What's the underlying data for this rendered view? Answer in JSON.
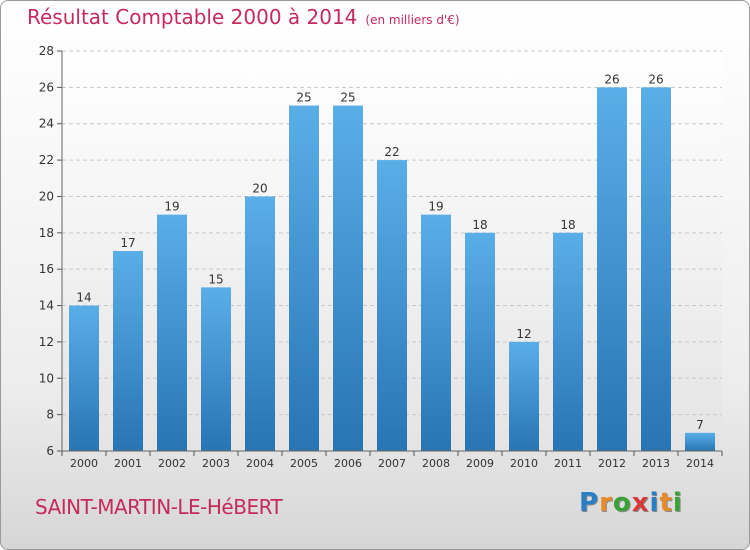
{
  "title": "Résultat Comptable 2000 à 2014",
  "unit_note": "(en milliers d'€)",
  "place": "SAINT-MARTIN-LE-HéBERT",
  "logo": {
    "letters": [
      "P",
      "r",
      "o",
      "x",
      "i",
      "t",
      "i"
    ],
    "colors": [
      "#2a7fc4",
      "#e8892a",
      "#3aa038",
      "#d63a3a",
      "#2a7fc4",
      "#e8892a",
      "#3aa038"
    ]
  },
  "colors": {
    "title": "#c62a5b",
    "bar_top": "#5aaee8",
    "bar_bottom": "#2775b3",
    "grid": "#c8c8c8"
  },
  "chart_data": {
    "type": "bar",
    "categories": [
      "2000",
      "2001",
      "2002",
      "2003",
      "2004",
      "2005",
      "2006",
      "2007",
      "2008",
      "2009",
      "2010",
      "2011",
      "2012",
      "2013",
      "2014"
    ],
    "values": [
      14,
      17,
      19,
      15,
      20,
      25,
      25,
      22,
      19,
      18,
      12,
      18,
      26,
      26,
      7
    ],
    "ylim": [
      6,
      28
    ],
    "yticks": [
      6,
      8,
      10,
      12,
      14,
      16,
      18,
      20,
      22,
      24,
      26,
      28
    ],
    "grid": true,
    "data_labels": true
  }
}
